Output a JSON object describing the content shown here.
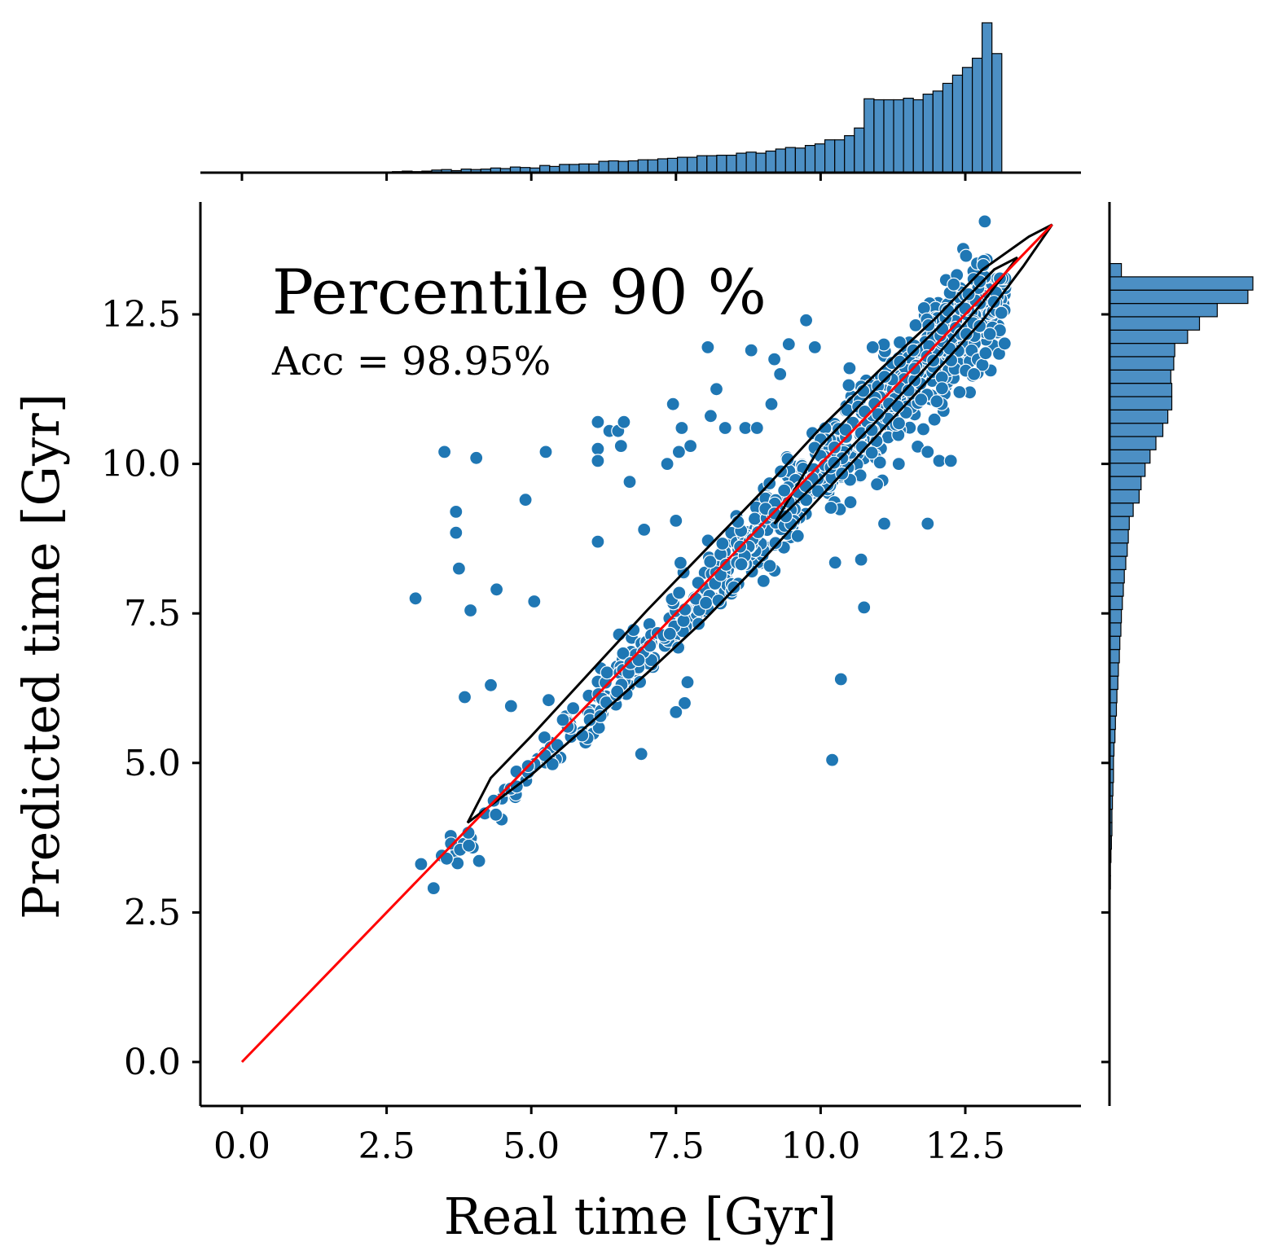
{
  "chart_data": {
    "type": "scatter",
    "title": "",
    "xlabel": "Real time [Gyr]",
    "ylabel": "Predicted time [Gyr]",
    "xlim": [
      -0.7,
      14.5
    ],
    "ylim": [
      -0.7,
      14.4
    ],
    "xticks": [
      "0.0",
      "2.5",
      "5.0",
      "7.5",
      "10.0",
      "12.5"
    ],
    "yticks": [
      "0.0",
      "2.5",
      "5.0",
      "7.5",
      "10.0",
      "12.5"
    ],
    "annotations": {
      "main": "Percentile 90 %",
      "sub": "Acc = 98.95%"
    },
    "colors": {
      "points": "#1f77b4",
      "hist_fill": "#4c8fc4",
      "reference_line": "#ff0000",
      "contour": "#000000"
    },
    "reference_line": {
      "x": [
        0,
        14
      ],
      "y": [
        0,
        14
      ]
    },
    "contour_outer": [
      [
        3.9,
        4.0
      ],
      [
        5.0,
        4.8
      ],
      [
        6.0,
        5.65
      ],
      [
        7.0,
        6.5
      ],
      [
        8.0,
        7.4
      ],
      [
        9.0,
        8.4
      ],
      [
        10.0,
        9.45
      ],
      [
        11.0,
        10.5
      ],
      [
        12.0,
        11.55
      ],
      [
        12.8,
        12.4
      ],
      [
        13.5,
        13.3
      ],
      [
        14.0,
        14.0
      ],
      [
        13.6,
        13.8
      ],
      [
        12.8,
        13.25
      ],
      [
        12.0,
        12.45
      ],
      [
        11.0,
        11.55
      ],
      [
        10.0,
        10.6
      ],
      [
        9.0,
        9.55
      ],
      [
        8.0,
        8.55
      ],
      [
        7.0,
        7.55
      ],
      [
        6.0,
        6.5
      ],
      [
        5.0,
        5.45
      ],
      [
        4.3,
        4.75
      ],
      [
        3.9,
        4.0
      ]
    ],
    "contour_inner": [
      [
        9.2,
        9.0
      ],
      [
        10.0,
        9.75
      ],
      [
        11.0,
        10.75
      ],
      [
        12.0,
        11.8
      ],
      [
        12.8,
        12.7
      ],
      [
        13.4,
        13.45
      ],
      [
        13.0,
        13.25
      ],
      [
        12.0,
        12.25
      ],
      [
        11.0,
        11.3
      ],
      [
        10.0,
        10.3
      ],
      [
        9.2,
        9.0
      ]
    ],
    "outliers": [
      [
        3.0,
        7.75
      ],
      [
        3.5,
        10.2
      ],
      [
        3.7,
        9.2
      ],
      [
        3.7,
        8.85
      ],
      [
        3.75,
        8.25
      ],
      [
        3.85,
        6.1
      ],
      [
        3.95,
        7.55
      ],
      [
        4.05,
        10.1
      ],
      [
        4.3,
        6.3
      ],
      [
        4.4,
        7.9
      ],
      [
        4.65,
        5.95
      ],
      [
        4.9,
        9.4
      ],
      [
        5.05,
        7.7
      ],
      [
        5.25,
        10.2
      ],
      [
        5.3,
        6.05
      ],
      [
        5.45,
        5.3
      ],
      [
        6.15,
        8.7
      ],
      [
        6.15,
        10.7
      ],
      [
        6.15,
        10.25
      ],
      [
        6.15,
        10.05
      ],
      [
        6.35,
        10.55
      ],
      [
        6.5,
        10.55
      ],
      [
        6.55,
        10.3
      ],
      [
        6.6,
        10.7
      ],
      [
        6.7,
        9.7
      ],
      [
        6.9,
        5.15
      ],
      [
        6.95,
        8.9
      ],
      [
        7.35,
        10.0
      ],
      [
        7.45,
        11.0
      ],
      [
        7.5,
        9.05
      ],
      [
        7.55,
        10.2
      ],
      [
        7.6,
        10.6
      ],
      [
        7.75,
        10.3
      ],
      [
        7.65,
        6.0
      ],
      [
        7.7,
        6.35
      ],
      [
        7.5,
        5.85
      ],
      [
        8.05,
        11.95
      ],
      [
        8.1,
        10.8
      ],
      [
        8.2,
        11.25
      ],
      [
        8.35,
        10.6
      ],
      [
        8.7,
        10.6
      ],
      [
        8.8,
        11.9
      ],
      [
        8.9,
        10.6
      ],
      [
        9.15,
        11.0
      ],
      [
        9.2,
        11.75
      ],
      [
        9.3,
        11.5
      ],
      [
        9.45,
        12.0
      ],
      [
        9.75,
        12.4
      ],
      [
        9.9,
        11.95
      ],
      [
        10.2,
        5.05
      ],
      [
        10.35,
        6.4
      ],
      [
        10.25,
        8.35
      ],
      [
        10.5,
        11.6
      ],
      [
        10.75,
        7.6
      ],
      [
        10.7,
        8.4
      ],
      [
        10.9,
        11.95
      ],
      [
        11.1,
        9.0
      ],
      [
        11.35,
        10.0
      ],
      [
        11.6,
        11.9
      ],
      [
        11.85,
        10.2
      ],
      [
        11.85,
        9.0
      ],
      [
        12.05,
        10.05
      ],
      [
        12.25,
        10.05
      ],
      [
        12.4,
        11.2
      ],
      [
        12.65,
        11.5
      ],
      [
        12.85,
        11.85
      ],
      [
        12.75,
        13.05
      ],
      [
        12.3,
        13.0
      ]
    ],
    "hist_x": {
      "bins": [
        2.6,
        13.3
      ],
      "counts": [
        2,
        3,
        2,
        3,
        5,
        6,
        4,
        7,
        6,
        7,
        9,
        8,
        11,
        10,
        9,
        14,
        12,
        16,
        16,
        17,
        17,
        22,
        23,
        22,
        23,
        25,
        25,
        27,
        28,
        30,
        30,
        33,
        33,
        34,
        34,
        38,
        40,
        38,
        42,
        46,
        49,
        48,
        53,
        56,
        64,
        64,
        72,
        87,
        144,
        142,
        142,
        142,
        145,
        142,
        153,
        159,
        174,
        190,
        205,
        223,
        292,
        232,
        1
      ]
    },
    "hist_y": {
      "bins": [
        2.0,
        13.35
      ],
      "counts": [
        1,
        1,
        1,
        1,
        2,
        2,
        3,
        4,
        5,
        5,
        6,
        7,
        8,
        8,
        9,
        11,
        12,
        14,
        15,
        17,
        18,
        20,
        21,
        23,
        24,
        26,
        28,
        30,
        33,
        36,
        38,
        40,
        48,
        60,
        64,
        72,
        82,
        94,
        108,
        118,
        126,
        126,
        124,
        130,
        132,
        158,
        182,
        218,
        280,
        290,
        24
      ]
    }
  }
}
